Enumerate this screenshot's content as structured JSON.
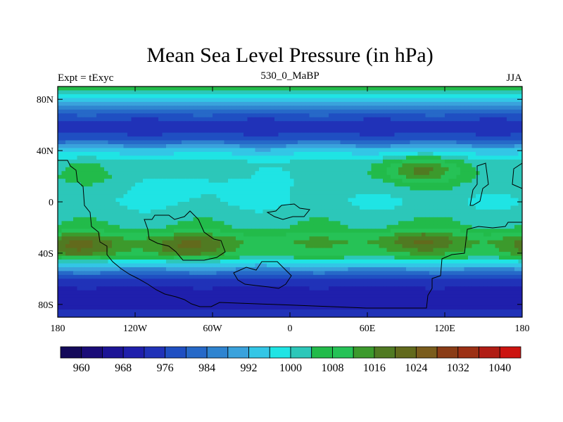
{
  "title": "Mean Sea Level Pressure (in hPa)",
  "left_string": "Expt = tExyc",
  "center_string": "530_0_MaBP",
  "right_string": "JJA",
  "x_ticks": [
    "180",
    "120W",
    "60W",
    "0",
    "60E",
    "120E",
    "180"
  ],
  "y_ticks": [
    "80N",
    "40N",
    "0",
    "40S",
    "80S"
  ],
  "colorbar_labels": [
    "960",
    "968",
    "976",
    "984",
    "992",
    "1000",
    "1008",
    "1016",
    "1024",
    "1032",
    "1040"
  ],
  "chart_data": {
    "type": "heatmap",
    "title": "Mean Sea Level Pressure (in hPa)",
    "xlim": [
      -180,
      180
    ],
    "ylim": [
      -90,
      90
    ],
    "x_ticks": [
      -180,
      -120,
      -60,
      0,
      60,
      120,
      180
    ],
    "y_ticks": [
      80,
      40,
      0,
      -40,
      -80
    ],
    "units": "hPa",
    "levels": [
      956,
      960,
      964,
      968,
      972,
      976,
      980,
      984,
      988,
      992,
      996,
      1000,
      1004,
      1008,
      1012,
      1016,
      1020,
      1024,
      1028,
      1032,
      1036,
      1040
    ],
    "colors": [
      "#140a5a",
      "#1a0c78",
      "#1c1496",
      "#1f1fac",
      "#2032b8",
      "#1f4fc2",
      "#2669c8",
      "#2f84d0",
      "#3aa2dc",
      "#33c6e6",
      "#1fe4e4",
      "#2cc7b9",
      "#22bb4a",
      "#26c256",
      "#3c9a2c",
      "#507a22",
      "#626a1c",
      "#7a5c1c",
      "#8a3c16",
      "#9c3014",
      "#b01c14",
      "#cc1410"
    ],
    "zonal_profile": [
      {
        "lat": 90,
        "value": 1002
      },
      {
        "lat": 80,
        "value": 989
      },
      {
        "lat": 70,
        "value": 978
      },
      {
        "lat": 60,
        "value": 968
      },
      {
        "lat": 50,
        "value": 974
      },
      {
        "lat": 40,
        "value": 990
      },
      {
        "lat": 30,
        "value": 999
      },
      {
        "lat": 20,
        "value": 1000
      },
      {
        "lat": 10,
        "value": 998
      },
      {
        "lat": 0,
        "value": 996
      },
      {
        "lat": -10,
        "value": 998
      },
      {
        "lat": -20,
        "value": 1000
      },
      {
        "lat": -30,
        "value": 1008
      },
      {
        "lat": -40,
        "value": 1006
      },
      {
        "lat": -50,
        "value": 988
      },
      {
        "lat": -60,
        "value": 972
      },
      {
        "lat": -70,
        "value": 966
      },
      {
        "lat": -80,
        "value": 966
      },
      {
        "lat": -90,
        "value": 970
      }
    ],
    "highs": [
      {
        "lon": -165,
        "lat": -35,
        "value": 1016
      },
      {
        "lon": -80,
        "lat": -35,
        "value": 1016
      },
      {
        "lon": 100,
        "lat": -30,
        "value": 1016
      },
      {
        "lon": 100,
        "lat": 25,
        "value": 1012
      }
    ],
    "lows": [
      {
        "lon": -75,
        "lat": 15,
        "value": 994
      },
      {
        "lon": 10,
        "lat": 20,
        "value": 996
      }
    ]
  }
}
